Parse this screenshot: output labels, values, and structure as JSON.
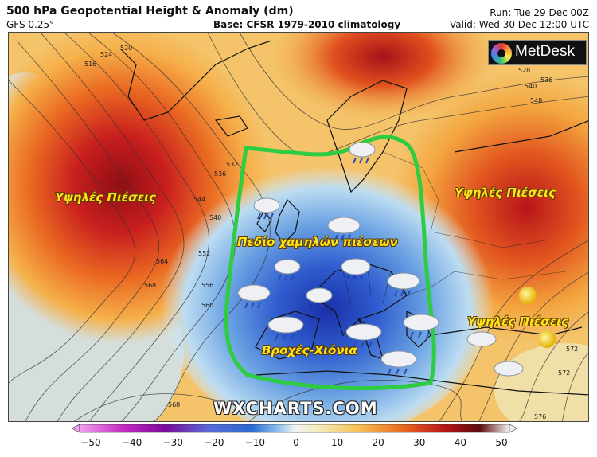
{
  "header": {
    "title": "500 hPa Geopotential Height & Anomaly (dm)",
    "model": "GFS 0.25°",
    "base": "Base: CFSR 1979-2010 climatology",
    "run": "Run: Tue 29 Dec 00Z",
    "valid": "Valid: Wed 30 Dec 12:00 UTC"
  },
  "logo": {
    "text": "MetDesk",
    "icon": "metdesk-sun-icon"
  },
  "watermark": "WXCHARTS.COM",
  "annotations": {
    "high_west": "Υψηλές Πιέσεις",
    "high_east": "Υψηλές Πιέσεις",
    "high_southeast": "Υψηλές Πιέσεις",
    "low_field": "Πεδίο χαμηλών πιέσεων",
    "precip": "Βροχές-Χιόνια"
  },
  "contour_labels": [
    "516",
    "520",
    "524",
    "528",
    "532",
    "536",
    "540",
    "544",
    "548",
    "552",
    "556",
    "560",
    "564",
    "568",
    "572",
    "576"
  ],
  "colorbar": {
    "ticks": [
      "−50",
      "−40",
      "−30",
      "−20",
      "−10",
      "0",
      "10",
      "20",
      "30",
      "40",
      "50"
    ],
    "min": -50,
    "max": 50,
    "colors": [
      "#7a0a7a",
      "#c42ac2",
      "#8a8ad8",
      "#2a4fc8",
      "#5a9ae0",
      "#cfe6f5",
      "#f3eec0",
      "#f6c155",
      "#ea6a22",
      "#b8141a",
      "#5a0a0a",
      "#f2f2f2"
    ]
  },
  "outline_color": "#2ecc40",
  "weather_icons": [
    "cloud-rain-icon",
    "cloud-snow-icon",
    "sun-icon",
    "cloud-icon"
  ]
}
